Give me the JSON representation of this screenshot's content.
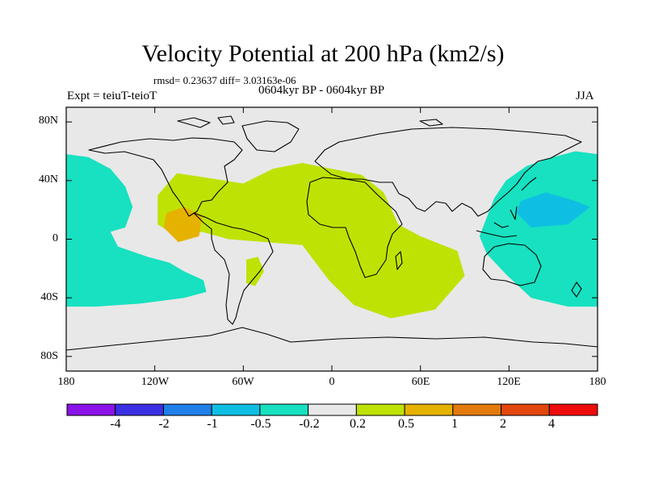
{
  "map": {
    "title": "Velocity Potential at 200 hPa (km2/s)",
    "stats": "rmsd= 0.23637 diff= 3.03163e-06",
    "experiment": "Expt = teiuT-teioT",
    "period": "0604kyr BP - 0604kyr BP",
    "season": "JJA",
    "projection": "cylindrical equidistant",
    "lat_range": [
      -90,
      90
    ],
    "lon_range": [
      -180,
      180
    ],
    "lat_ticks": [
      {
        "value": 80,
        "label": "80N"
      },
      {
        "value": 40,
        "label": "40N"
      },
      {
        "value": 0,
        "label": "0"
      },
      {
        "value": -40,
        "label": "40S"
      },
      {
        "value": -80,
        "label": "80S"
      }
    ],
    "lon_ticks": [
      {
        "value": -180,
        "label": "180"
      },
      {
        "value": -120,
        "label": "120W"
      },
      {
        "value": -60,
        "label": "60W"
      },
      {
        "value": 0,
        "label": "0"
      },
      {
        "value": 60,
        "label": "60E"
      },
      {
        "value": 120,
        "label": "120E"
      },
      {
        "value": 180,
        "label": "180"
      }
    ],
    "regions": [
      {
        "name": "east-pacific-negative",
        "level": "-0.5 to -0.2",
        "color": "#17e1c0",
        "lonlat": [
          [
            -180,
            58
          ],
          [
            -165,
            56
          ],
          [
            -150,
            48
          ],
          [
            -140,
            36
          ],
          [
            -135,
            22
          ],
          [
            -140,
            8
          ],
          [
            -150,
            5
          ],
          [
            -145,
            -5
          ],
          [
            -125,
            -12
          ],
          [
            -110,
            -16
          ],
          [
            -100,
            -22
          ],
          [
            -87,
            -28
          ],
          [
            -85,
            -36
          ],
          [
            -100,
            -40
          ],
          [
            -130,
            -44
          ],
          [
            -160,
            -46
          ],
          [
            -180,
            -46
          ]
        ]
      },
      {
        "name": "west-pacific-negative",
        "level": "-0.5 to -0.2",
        "color": "#17e1c0",
        "lonlat": [
          [
            180,
            58
          ],
          [
            165,
            60
          ],
          [
            150,
            56
          ],
          [
            132,
            50
          ],
          [
            118,
            40
          ],
          [
            110,
            28
          ],
          [
            105,
            15
          ],
          [
            100,
            2
          ],
          [
            105,
            -10
          ],
          [
            118,
            -24
          ],
          [
            135,
            -40
          ],
          [
            160,
            -46
          ],
          [
            180,
            -46
          ]
        ]
      },
      {
        "name": "west-pacific-core",
        "level": "-1 to -0.5",
        "color": "#0fbfe3",
        "lonlat": [
          [
            128,
            26
          ],
          [
            145,
            32
          ],
          [
            165,
            26
          ],
          [
            175,
            22
          ],
          [
            160,
            10
          ],
          [
            135,
            8
          ],
          [
            125,
            18
          ]
        ]
      },
      {
        "name": "atlantic-africa-positive",
        "level": "0.2 to 0.5",
        "color": "#bfe205",
        "lonlat": [
          [
            -118,
            30
          ],
          [
            -105,
            45
          ],
          [
            -85,
            42
          ],
          [
            -60,
            38
          ],
          [
            -40,
            48
          ],
          [
            -20,
            52
          ],
          [
            0,
            48
          ],
          [
            20,
            44
          ],
          [
            35,
            32
          ],
          [
            45,
            10
          ],
          [
            60,
            2
          ],
          [
            85,
            -8
          ],
          [
            90,
            -25
          ],
          [
            70,
            -48
          ],
          [
            40,
            -54
          ],
          [
            15,
            -45
          ],
          [
            -2,
            -28
          ],
          [
            -20,
            -4
          ],
          [
            -45,
            -2
          ],
          [
            -70,
            0
          ],
          [
            -88,
            5
          ],
          [
            -105,
            2
          ],
          [
            -118,
            10
          ]
        ]
      },
      {
        "name": "south-america-positive",
        "level": "0.2 to 0.5",
        "color": "#bfe205",
        "lonlat": [
          [
            -58,
            -14
          ],
          [
            -50,
            -12
          ],
          [
            -46,
            -22
          ],
          [
            -52,
            -32
          ],
          [
            -58,
            -30
          ]
        ]
      },
      {
        "name": "east-pacific-positive",
        "level": "0.5 to 1",
        "color": "#e6b200",
        "lonlat": [
          [
            -112,
            18
          ],
          [
            -100,
            22
          ],
          [
            -88,
            16
          ],
          [
            -90,
            2
          ],
          [
            -104,
            -2
          ],
          [
            -114,
            8
          ]
        ]
      }
    ],
    "colorbar": {
      "colors": [
        "#8a12e8",
        "#3b2fe3",
        "#1f7fe8",
        "#0fbfe3",
        "#17e1c0",
        "#e8e8e8",
        "#bfe205",
        "#e6b200",
        "#e27a0c",
        "#e2460c",
        "#ee0b0b"
      ],
      "labels": [
        "-4",
        "-2",
        "-1",
        "-0.5",
        "-0.2",
        "0.2",
        "0.5",
        "1",
        "2",
        "4"
      ]
    }
  }
}
